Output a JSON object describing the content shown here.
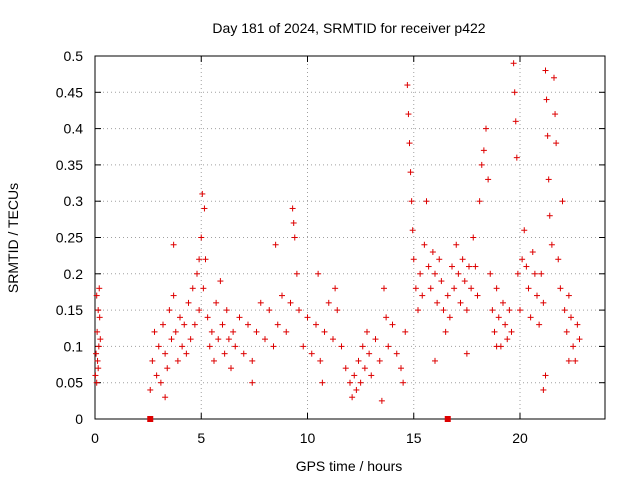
{
  "chart_data": {
    "type": "scatter",
    "title": "Day 181 of 2024, SRMTID for receiver p422",
    "xlabel": "GPS time / hours",
    "ylabel": "SRMTID / TECUs",
    "xlim": [
      0,
      24
    ],
    "ylim": [
      0,
      0.5
    ],
    "xticks": [
      0,
      5,
      10,
      15,
      20
    ],
    "xtick_labels": [
      "0",
      "5",
      "10",
      "15",
      "20"
    ],
    "yticks": [
      0,
      0.05,
      0.1,
      0.15,
      0.2,
      0.25,
      0.3,
      0.35,
      0.4,
      0.45,
      0.5
    ],
    "ytick_labels": [
      "0",
      "0.05",
      "0.1",
      "0.15",
      "0.2",
      "0.25",
      "0.3",
      "0.35",
      "0.4",
      "0.45",
      "0.5"
    ],
    "grid": true,
    "marker": "+",
    "color": "#dd0000",
    "series": [
      {
        "name": "SRMTID",
        "points": [
          [
            0.02,
            0.06
          ],
          [
            0.05,
            0.09
          ],
          [
            0.08,
            0.05
          ],
          [
            0.1,
            0.12
          ],
          [
            0.12,
            0.08
          ],
          [
            0.15,
            0.15
          ],
          [
            0.18,
            0.1
          ],
          [
            0.2,
            0.18
          ],
          [
            0.22,
            0.14
          ],
          [
            0.25,
            0.11
          ],
          [
            0.08,
            0.17
          ],
          [
            0.15,
            0.07
          ],
          [
            2.6,
            0.04
          ],
          [
            2.7,
            0.08
          ],
          [
            2.8,
            0.12
          ],
          [
            2.9,
            0.06
          ],
          [
            3.0,
            0.1
          ],
          [
            3.1,
            0.05
          ],
          [
            3.2,
            0.13
          ],
          [
            3.3,
            0.09
          ],
          [
            3.4,
            0.07
          ],
          [
            3.5,
            0.15
          ],
          [
            3.6,
            0.11
          ],
          [
            3.7,
            0.17
          ],
          [
            3.8,
            0.12
          ],
          [
            3.9,
            0.08
          ],
          [
            4.0,
            0.14
          ],
          [
            4.1,
            0.1
          ],
          [
            4.2,
            0.13
          ],
          [
            4.3,
            0.09
          ],
          [
            4.4,
            0.16
          ],
          [
            4.5,
            0.11
          ],
          [
            4.6,
            0.18
          ],
          [
            4.7,
            0.13
          ],
          [
            4.8,
            0.2
          ],
          [
            4.9,
            0.15
          ],
          [
            5.0,
            0.25
          ],
          [
            5.05,
            0.31
          ],
          [
            5.1,
            0.18
          ],
          [
            5.15,
            0.29
          ],
          [
            5.2,
            0.22
          ],
          [
            5.3,
            0.14
          ],
          [
            5.4,
            0.1
          ],
          [
            5.5,
            0.12
          ],
          [
            5.6,
            0.08
          ],
          [
            5.7,
            0.16
          ],
          [
            5.8,
            0.11
          ],
          [
            5.9,
            0.19
          ],
          [
            6.0,
            0.13
          ],
          [
            6.1,
            0.09
          ],
          [
            6.2,
            0.15
          ],
          [
            6.3,
            0.11
          ],
          [
            6.4,
            0.07
          ],
          [
            6.5,
            0.12
          ],
          [
            3.7,
            0.24
          ],
          [
            4.9,
            0.22
          ],
          [
            3.3,
            0.03
          ],
          [
            6.6,
            0.1
          ],
          [
            6.8,
            0.14
          ],
          [
            7.0,
            0.09
          ],
          [
            7.2,
            0.13
          ],
          [
            7.4,
            0.08
          ],
          [
            7.6,
            0.12
          ],
          [
            7.8,
            0.16
          ],
          [
            8.0,
            0.11
          ],
          [
            8.2,
            0.15
          ],
          [
            8.4,
            0.1
          ],
          [
            8.5,
            0.24
          ],
          [
            8.6,
            0.13
          ],
          [
            8.8,
            0.17
          ],
          [
            9.0,
            0.12
          ],
          [
            9.2,
            0.16
          ],
          [
            9.3,
            0.29
          ],
          [
            9.35,
            0.27
          ],
          [
            9.4,
            0.25
          ],
          [
            9.5,
            0.2
          ],
          [
            9.6,
            0.15
          ],
          [
            9.8,
            0.1
          ],
          [
            10.0,
            0.14
          ],
          [
            10.2,
            0.09
          ],
          [
            10.4,
            0.13
          ],
          [
            10.5,
            0.2
          ],
          [
            10.6,
            0.08
          ],
          [
            10.8,
            0.12
          ],
          [
            11.0,
            0.16
          ],
          [
            11.2,
            0.11
          ],
          [
            11.4,
            0.15
          ],
          [
            11.6,
            0.1
          ],
          [
            11.8,
            0.07
          ],
          [
            12.0,
            0.05
          ],
          [
            12.1,
            0.03
          ],
          [
            12.2,
            0.06
          ],
          [
            12.3,
            0.04
          ],
          [
            12.4,
            0.08
          ],
          [
            12.5,
            0.05
          ],
          [
            12.6,
            0.1
          ],
          [
            12.7,
            0.07
          ],
          [
            12.8,
            0.12
          ],
          [
            12.9,
            0.09
          ],
          [
            13.0,
            0.06
          ],
          [
            13.2,
            0.11
          ],
          [
            13.4,
            0.08
          ],
          [
            13.6,
            0.18
          ],
          [
            13.7,
            0.14
          ],
          [
            13.8,
            0.1
          ],
          [
            14.0,
            0.13
          ],
          [
            14.2,
            0.09
          ],
          [
            14.4,
            0.07
          ],
          [
            14.5,
            0.05
          ],
          [
            14.6,
            0.12
          ],
          [
            13.5,
            0.025
          ],
          [
            7.4,
            0.05
          ],
          [
            10.7,
            0.05
          ],
          [
            11.3,
            0.18
          ],
          [
            14.7,
            0.46
          ],
          [
            14.75,
            0.42
          ],
          [
            14.8,
            0.38
          ],
          [
            14.85,
            0.34
          ],
          [
            14.9,
            0.3
          ],
          [
            14.95,
            0.26
          ],
          [
            15.0,
            0.22
          ],
          [
            15.1,
            0.18
          ],
          [
            15.2,
            0.15
          ],
          [
            15.3,
            0.2
          ],
          [
            15.4,
            0.17
          ],
          [
            15.5,
            0.24
          ],
          [
            15.6,
            0.3
          ],
          [
            15.7,
            0.21
          ],
          [
            15.8,
            0.18
          ],
          [
            15.9,
            0.23
          ],
          [
            16.0,
            0.2
          ],
          [
            16.1,
            0.16
          ],
          [
            16.2,
            0.22
          ],
          [
            16.3,
            0.19
          ],
          [
            16.4,
            0.15
          ],
          [
            16.5,
            0.12
          ],
          [
            16.6,
            0.17
          ],
          [
            16.7,
            0.14
          ],
          [
            16.8,
            0.21
          ],
          [
            16.9,
            0.18
          ],
          [
            17.0,
            0.24
          ],
          [
            17.1,
            0.2
          ],
          [
            17.2,
            0.16
          ],
          [
            17.3,
            0.22
          ],
          [
            17.4,
            0.19
          ],
          [
            17.5,
            0.15
          ],
          [
            17.6,
            0.21
          ],
          [
            17.7,
            0.18
          ],
          [
            17.8,
            0.25
          ],
          [
            17.9,
            0.21
          ],
          [
            18.0,
            0.17
          ],
          [
            18.1,
            0.3
          ],
          [
            18.2,
            0.35
          ],
          [
            18.3,
            0.37
          ],
          [
            18.4,
            0.4
          ],
          [
            18.5,
            0.33
          ],
          [
            18.6,
            0.2
          ],
          [
            18.7,
            0.15
          ],
          [
            18.8,
            0.12
          ],
          [
            18.9,
            0.18
          ],
          [
            19.0,
            0.14
          ],
          [
            19.1,
            0.1
          ],
          [
            19.2,
            0.16
          ],
          [
            19.3,
            0.13
          ],
          [
            19.4,
            0.11
          ],
          [
            19.5,
            0.15
          ],
          [
            19.6,
            0.12
          ],
          [
            19.7,
            0.49
          ],
          [
            19.75,
            0.45
          ],
          [
            19.8,
            0.41
          ],
          [
            19.85,
            0.36
          ],
          [
            19.9,
            0.2
          ],
          [
            20.0,
            0.15
          ],
          [
            20.1,
            0.22
          ],
          [
            20.2,
            0.26
          ],
          [
            20.3,
            0.21
          ],
          [
            20.4,
            0.18
          ],
          [
            20.5,
            0.14
          ],
          [
            20.6,
            0.23
          ],
          [
            20.7,
            0.2
          ],
          [
            20.8,
            0.17
          ],
          [
            20.9,
            0.13
          ],
          [
            21.0,
            0.2
          ],
          [
            21.1,
            0.16
          ],
          [
            21.2,
            0.48
          ],
          [
            21.25,
            0.44
          ],
          [
            21.3,
            0.39
          ],
          [
            21.35,
            0.33
          ],
          [
            21.4,
            0.28
          ],
          [
            21.5,
            0.24
          ],
          [
            21.6,
            0.47
          ],
          [
            21.65,
            0.42
          ],
          [
            21.7,
            0.38
          ],
          [
            21.8,
            0.22
          ],
          [
            21.9,
            0.18
          ],
          [
            22.0,
            0.3
          ],
          [
            22.1,
            0.15
          ],
          [
            22.2,
            0.12
          ],
          [
            22.3,
            0.17
          ],
          [
            22.4,
            0.14
          ],
          [
            22.5,
            0.1
          ],
          [
            22.6,
            0.08
          ],
          [
            22.7,
            0.13
          ],
          [
            22.8,
            0.11
          ],
          [
            21.2,
            0.06
          ],
          [
            21.1,
            0.04
          ],
          [
            22.3,
            0.08
          ],
          [
            16.0,
            0.08
          ],
          [
            17.5,
            0.09
          ],
          [
            18.9,
            0.1
          ]
        ]
      }
    ],
    "axis_markers": [
      {
        "x": 2.6,
        "y": 0
      },
      {
        "x": 16.6,
        "y": 0
      }
    ]
  }
}
